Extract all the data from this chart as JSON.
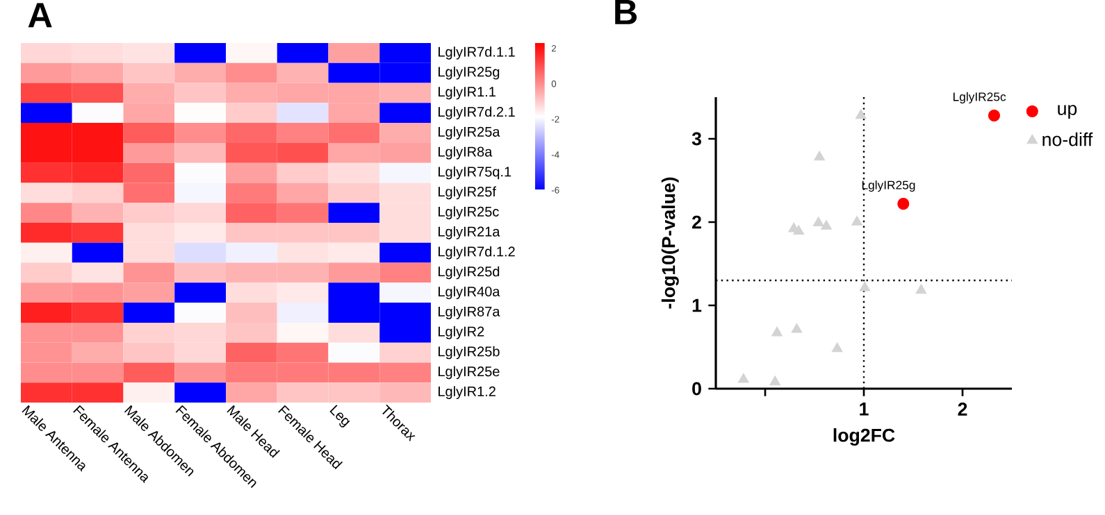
{
  "chart_data": [
    {
      "type": "heatmap",
      "title": "A",
      "categories": [
        "Male  Antenna",
        "Female Antenna",
        "Male Abdomen",
        "Female Abdomen",
        "Male Head",
        "Female Head",
        "Leg",
        "Thorax"
      ],
      "y_categories": [
        "LglyIR7d.1.1",
        "LglyIR25g",
        "LglyIR1.1",
        "LglyIR7d.2.1",
        "LglyIR25a",
        "LglyIR8a",
        "LglyIR75q.1",
        "LglyIR25f",
        "LglyIR25c",
        "LglyIR21a",
        "LglyIR7d.1.2",
        "LglyIR25d",
        "LglyIR40a",
        "LglyIR87a",
        "LglyIR2",
        "LglyIR25b",
        "LglyIR25e",
        "LglyIR1.2"
      ],
      "cells": [
        [
          -1.2,
          -1.3,
          -1.4,
          -6,
          -1.7,
          -6,
          -0.3,
          -6
        ],
        [
          -0.2,
          -0.4,
          -0.9,
          -0.5,
          0,
          -0.6,
          -6,
          -6
        ],
        [
          1.2,
          1.0,
          -0.5,
          -0.9,
          -0.5,
          -0.4,
          -0.4,
          -0.6
        ],
        [
          -6,
          -1.9,
          -0.4,
          -1.8,
          -1.0,
          -2.3,
          -0.4,
          -6
        ],
        [
          2,
          2,
          0.8,
          0,
          0.6,
          0.2,
          0.5,
          -0.5
        ],
        [
          2,
          2,
          -0.2,
          -0.7,
          0.9,
          1.0,
          -0.4,
          -0.3
        ],
        [
          1.5,
          1.6,
          0.6,
          -1.9,
          -0.3,
          -1.0,
          -1.3,
          -2.0
        ],
        [
          -1.3,
          -1.1,
          0.5,
          -2.0,
          0.3,
          -0.4,
          -1.0,
          -1.3
        ],
        [
          0.1,
          -0.6,
          -1.0,
          -1.2,
          0.7,
          0.4,
          -6,
          -1.3
        ],
        [
          1.6,
          1.4,
          -1.3,
          -1.5,
          -0.9,
          -0.9,
          -0.9,
          -1.3
        ],
        [
          -1.6,
          -6,
          -1.3,
          -2.4,
          -2.1,
          -1.4,
          -1.5,
          -6
        ],
        [
          -1.0,
          -1.4,
          -0.1,
          -0.8,
          -0.6,
          -0.6,
          -0.2,
          0.2
        ],
        [
          -0.2,
          -0.1,
          -0.3,
          -6,
          -1.3,
          -1.5,
          -6,
          -2.0
        ],
        [
          1.8,
          1.5,
          -6,
          -1.9,
          -0.8,
          -2.1,
          -6,
          -6
        ],
        [
          -0.1,
          -0.1,
          -1.1,
          -1.2,
          -0.9,
          -1.7,
          -1.3,
          -6
        ],
        [
          -0.1,
          -0.5,
          -0.9,
          -1.2,
          0.7,
          0.4,
          -1.9,
          -1.1
        ],
        [
          0,
          0,
          0.8,
          -0.1,
          0.3,
          0.3,
          0.3,
          0.2
        ],
        [
          1.5,
          1.5,
          -1.6,
          -6,
          -0.4,
          -0.9,
          -0.9,
          -0.7
        ]
      ],
      "clim": [
        -6,
        2.3
      ],
      "cticks": [
        -6,
        -4,
        -2,
        0,
        2
      ]
    },
    {
      "type": "scatter",
      "title": "B",
      "xlabel": "log2FC",
      "ylabel": "-log10(P-value)",
      "xlim": [
        -0.5,
        2.5
      ],
      "xticks": [
        {
          "value": 0,
          "label": null
        },
        1,
        2
      ],
      "ylim": [
        0,
        3.5
      ],
      "yticks": [
        0,
        1,
        2,
        3
      ],
      "series": [
        {
          "name": "up",
          "color": "#ff0000",
          "marker": "circle",
          "x": [
            1.4,
            2.32
          ],
          "values": [
            2.22,
            3.28
          ]
        },
        {
          "name": "no-diff",
          "color": "#d3d3d3",
          "marker": "triangle",
          "x": [
            -0.22,
            0.1,
            0.12,
            0.32,
            0.29,
            0.34,
            0.97,
            0.55,
            0.54,
            0.62,
            0.93,
            1.01,
            1.58,
            0.73
          ],
          "values": [
            0.11,
            0.08,
            0.67,
            0.71,
            1.92,
            1.89,
            3.28,
            2.78,
            1.99,
            1.95,
            2.0,
            1.21,
            1.18,
            0.48
          ]
        }
      ],
      "ref_lines": [
        {
          "axis": "y",
          "value": 1.3,
          "line_style": "dotted"
        },
        {
          "axis": "x",
          "value": 1,
          "line_style": "dotted"
        }
      ],
      "annotations": [
        {
          "text": "LglyIR25c",
          "x": 2.32,
          "y": 3.28
        },
        {
          "text": "LglyIR25g",
          "x": 1.4,
          "y": 2.22
        }
      ],
      "legend": "right",
      "grid": false
    }
  ]
}
